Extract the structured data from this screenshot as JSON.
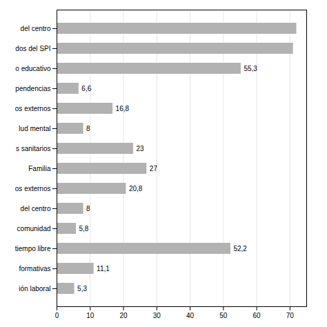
{
  "chart_data": {
    "type": "bar",
    "orientation": "horizontal",
    "categories": [
      "del centro",
      "dos del SPI",
      "o educativo",
      "pendencias",
      "os externos",
      "lud mental",
      "s sanitarios",
      "Familia",
      "os externos",
      "del centro",
      "comunidad",
      "tiempo libre",
      "formativas",
      "ión laboral"
    ],
    "values": [
      72,
      71,
      55.3,
      6.6,
      16.8,
      8,
      23,
      27,
      20.8,
      8,
      5.8,
      52.2,
      11.1,
      5.3
    ],
    "value_labels": [
      null,
      null,
      "55,3",
      "6,6",
      "16,8",
      "8",
      "23",
      "27",
      "20,8",
      "8",
      "5,8",
      "52,2",
      "11,1",
      "5,3"
    ],
    "color": "#b2b2b2",
    "xlim": [
      0,
      75
    ],
    "xticks": [
      0,
      10,
      20,
      30,
      40,
      50,
      60,
      70
    ],
    "grid": true
  }
}
